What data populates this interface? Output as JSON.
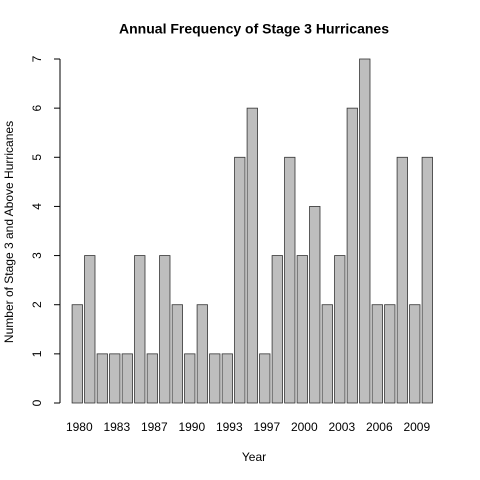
{
  "chart_data": {
    "type": "bar",
    "title": "Annual Frequency of Stage 3 Hurricanes",
    "xlabel": "Year",
    "ylabel": "Number of Stage 3 and Above Hurricanes",
    "categories": [
      "1980",
      null,
      null,
      "1983",
      null,
      null,
      "1987",
      null,
      null,
      "1990",
      null,
      null,
      "1993",
      null,
      null,
      "1997",
      null,
      null,
      "2000",
      null,
      null,
      "2003",
      null,
      null,
      "2006",
      null,
      null,
      "2009",
      null
    ],
    "values": [
      2,
      3,
      1,
      1,
      1,
      3,
      1,
      3,
      2,
      1,
      2,
      1,
      1,
      5,
      6,
      1,
      3,
      5,
      3,
      4,
      2,
      3,
      6,
      7,
      2,
      2,
      5,
      2,
      5
    ],
    "color": "#bebebe",
    "ylim": [
      0,
      7
    ],
    "yticks": [
      0,
      1,
      2,
      3,
      4,
      5,
      6,
      7
    ],
    "grid": false
  }
}
